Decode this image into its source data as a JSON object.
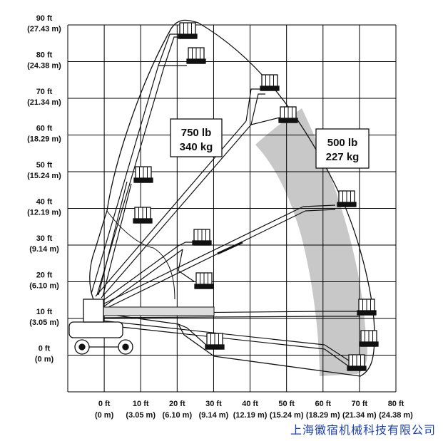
{
  "chart_data": {
    "type": "diagram",
    "title": "",
    "y_ticks": [
      {
        "ft": "90 ft",
        "m": "(27.43 m)"
      },
      {
        "ft": "80 ft",
        "m": "(24.38 m)"
      },
      {
        "ft": "70 ft",
        "m": "(21.34 m)"
      },
      {
        "ft": "60 ft",
        "m": "(18.29 m)"
      },
      {
        "ft": "50 ft",
        "m": "(15.24 m)"
      },
      {
        "ft": "40 ft",
        "m": "(12.19 m)"
      },
      {
        "ft": "30 ft",
        "m": "(9.14 m)"
      },
      {
        "ft": "20 ft",
        "m": "(6.10 m)"
      },
      {
        "ft": "10 ft",
        "m": "(3.05 m)"
      },
      {
        "ft": "0 ft",
        "m": "(0 m)"
      }
    ],
    "x_ticks": [
      {
        "ft": "0 ft",
        "m": "(0 m)"
      },
      {
        "ft": "10 ft",
        "m": "(3.05 m)"
      },
      {
        "ft": "20 ft",
        "m": "(6.10 m)"
      },
      {
        "ft": "30 ft",
        "m": "(9.14 m)"
      },
      {
        "ft": "40 ft",
        "m": "(12.19 m)"
      },
      {
        "ft": "50 ft",
        "m": "(15.24 m)"
      },
      {
        "ft": "60 ft",
        "m": "(18.29 m)"
      },
      {
        "ft": "70 ft",
        "m": "(21.34 m)"
      },
      {
        "ft": "80 ft",
        "m": "(24.38 m)"
      }
    ],
    "capacity_zones": [
      {
        "line1": "750 lb",
        "line2": "340 kg",
        "fill": "#ffffff"
      },
      {
        "line1": "500 lb",
        "line2": "227 kg",
        "fill": "#c8c8c8"
      }
    ],
    "x_range_ft": [
      -10,
      80
    ],
    "y_range_ft": [
      -10,
      90
    ],
    "grid": true
  },
  "footer": {
    "company": "上海徽宿机械科技有限公司"
  },
  "colors": {
    "grid": "#000000",
    "zone": "#c8c8c8",
    "footer_text": "#1a3fb5"
  }
}
